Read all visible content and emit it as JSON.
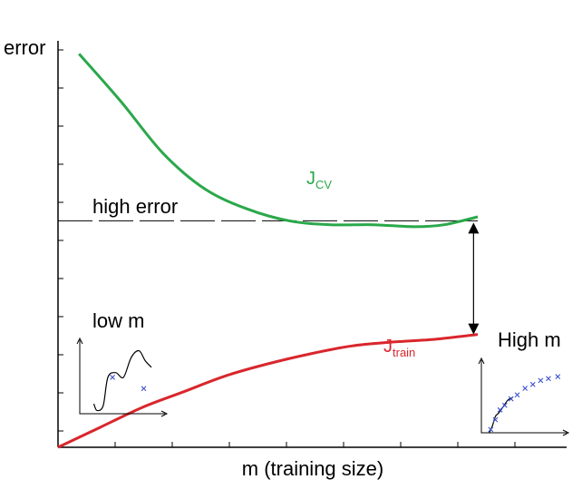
{
  "chart_data": {
    "type": "line",
    "ylabel": "error",
    "xlabel": "m (training size)",
    "annotations": {
      "high_error": "high error",
      "low_m": "low m",
      "high_m": "High m"
    },
    "colors": {
      "cv": "#2aa84a",
      "train": "#d9262c",
      "axis": "#000000"
    },
    "xlim": [
      0,
      100
    ],
    "ylim": [
      0,
      100
    ],
    "series": [
      {
        "key": "cv",
        "name_main": "J",
        "name_sub": "CV",
        "x": [
          5,
          15,
          25,
          35,
          45,
          55,
          65,
          75,
          85,
          92,
          100
        ],
        "y": [
          99,
          87,
          74,
          65,
          60,
          57,
          56,
          56,
          55.5,
          56,
          58
        ]
      },
      {
        "key": "train",
        "name_main": "J",
        "name_sub": "train",
        "x": [
          0,
          10,
          20,
          30,
          40,
          50,
          60,
          70,
          80,
          90,
          100
        ],
        "y": [
          0,
          5,
          10,
          14,
          18,
          21,
          23.5,
          25.5,
          26.5,
          27.2,
          28.4
        ]
      }
    ],
    "high_error_level": 57,
    "insets": [
      {
        "key": "low_m",
        "points": [
          [
            0.42,
            0.55
          ],
          [
            0.82,
            0.38
          ]
        ],
        "curve": [
          [
            0.18,
            0.15
          ],
          [
            0.22,
            0.05
          ],
          [
            0.3,
            0.12
          ],
          [
            0.36,
            0.55
          ],
          [
            0.46,
            0.62
          ],
          [
            0.56,
            0.55
          ],
          [
            0.66,
            0.85
          ],
          [
            0.76,
            0.95
          ],
          [
            0.84,
            0.8
          ],
          [
            0.92,
            0.7
          ]
        ]
      },
      {
        "key": "high_m",
        "points": [
          [
            0.12,
            0.05
          ],
          [
            0.18,
            0.2
          ],
          [
            0.24,
            0.35
          ],
          [
            0.3,
            0.42
          ],
          [
            0.38,
            0.52
          ],
          [
            0.46,
            0.58
          ],
          [
            0.56,
            0.68
          ],
          [
            0.66,
            0.74
          ],
          [
            0.76,
            0.8
          ],
          [
            0.86,
            0.83
          ],
          [
            0.98,
            0.86
          ]
        ],
        "curve": [
          [
            0.1,
            0.0
          ],
          [
            0.14,
            0.1
          ],
          [
            0.18,
            0.25
          ],
          [
            0.22,
            0.3
          ],
          [
            0.28,
            0.4
          ],
          [
            0.34,
            0.5
          ],
          [
            0.4,
            0.54
          ]
        ]
      }
    ]
  }
}
